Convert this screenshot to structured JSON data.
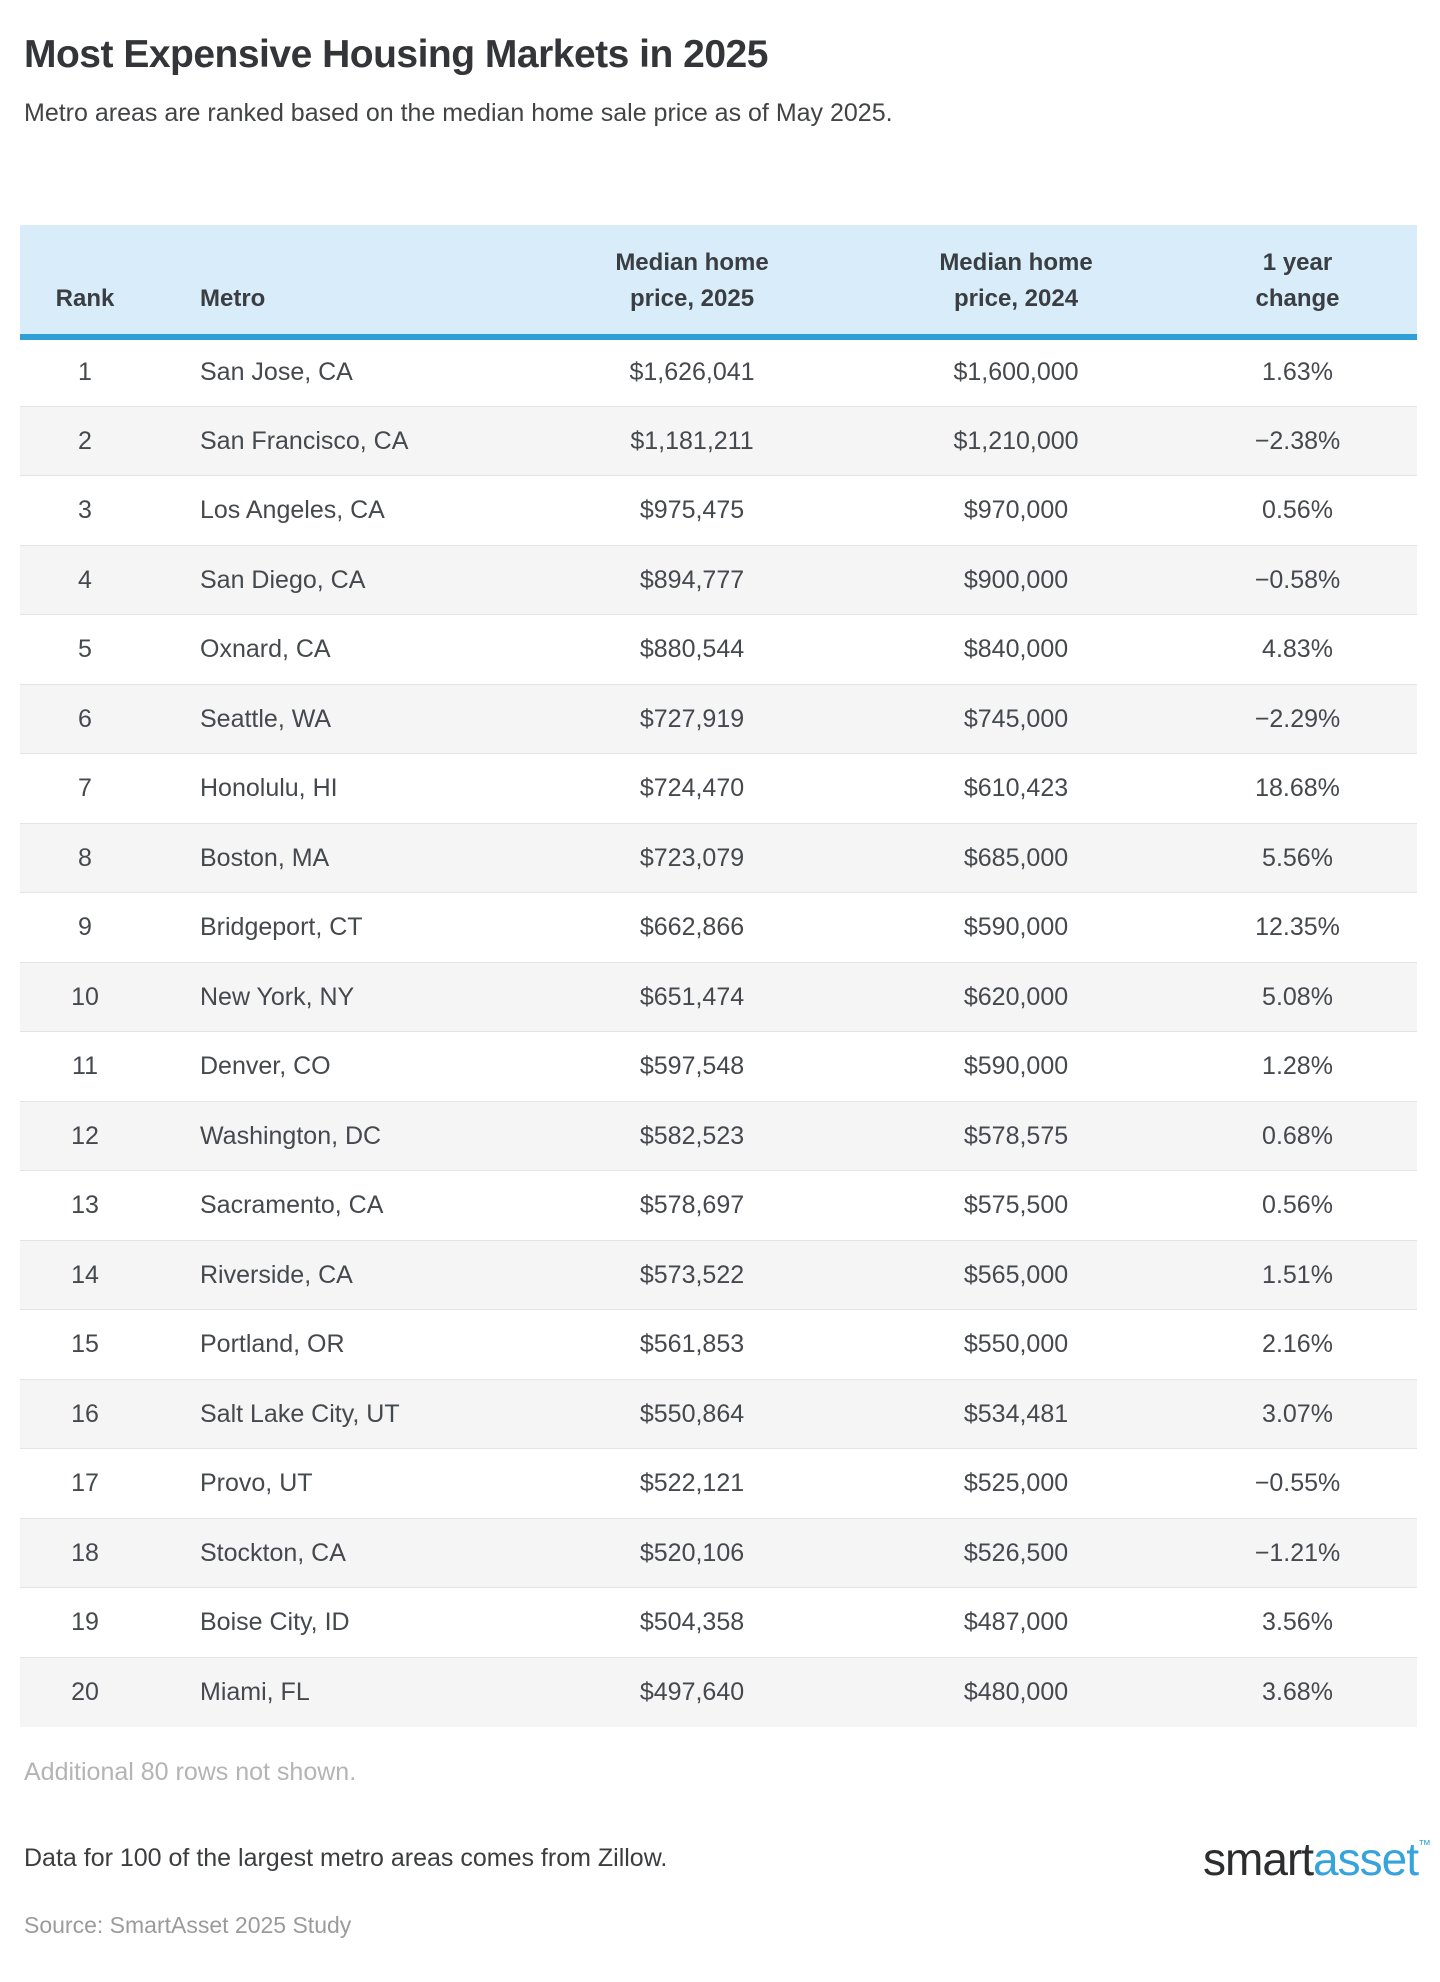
{
  "header": {
    "title": "Most Expensive Housing Markets in 2025",
    "subtitle": "Metro areas are ranked based on the median home sale price as of May 2025."
  },
  "table": {
    "columns": [
      "Rank",
      "Metro",
      "Median home\nprice, 2025",
      "Median home\nprice, 2024",
      "1 year\nchange"
    ]
  },
  "chart_data": {
    "type": "table",
    "title": "Most Expensive Housing Markets in 2025",
    "subtitle": "Metro areas are ranked based on the median home sale price as of May 2025.",
    "columns": [
      "Rank",
      "Metro",
      "Median home price, 2025",
      "Median home price, 2024",
      "1 year change"
    ],
    "rows": [
      [
        "1",
        "San Jose, CA",
        "$1,626,041",
        "$1,600,000",
        "1.63%"
      ],
      [
        "2",
        "San Francisco, CA",
        "$1,181,211",
        "$1,210,000",
        "−2.38%"
      ],
      [
        "3",
        "Los Angeles, CA",
        "$975,475",
        "$970,000",
        "0.56%"
      ],
      [
        "4",
        "San Diego, CA",
        "$894,777",
        "$900,000",
        "−0.58%"
      ],
      [
        "5",
        "Oxnard, CA",
        "$880,544",
        "$840,000",
        "4.83%"
      ],
      [
        "6",
        "Seattle, WA",
        "$727,919",
        "$745,000",
        "−2.29%"
      ],
      [
        "7",
        "Honolulu, HI",
        "$724,470",
        "$610,423",
        "18.68%"
      ],
      [
        "8",
        "Boston, MA",
        "$723,079",
        "$685,000",
        "5.56%"
      ],
      [
        "9",
        "Bridgeport, CT",
        "$662,866",
        "$590,000",
        "12.35%"
      ],
      [
        "10",
        "New York, NY",
        "$651,474",
        "$620,000",
        "5.08%"
      ],
      [
        "11",
        "Denver, CO",
        "$597,548",
        "$590,000",
        "1.28%"
      ],
      [
        "12",
        "Washington, DC",
        "$582,523",
        "$578,575",
        "0.68%"
      ],
      [
        "13",
        "Sacramento, CA",
        "$578,697",
        "$575,500",
        "0.56%"
      ],
      [
        "14",
        "Riverside, CA",
        "$573,522",
        "$565,000",
        "1.51%"
      ],
      [
        "15",
        "Portland, OR",
        "$561,853",
        "$550,000",
        "2.16%"
      ],
      [
        "16",
        "Salt Lake City, UT",
        "$550,864",
        "$534,481",
        "3.07%"
      ],
      [
        "17",
        "Provo, UT",
        "$522,121",
        "$525,000",
        "−0.55%"
      ],
      [
        "18",
        "Stockton, CA",
        "$520,106",
        "$526,500",
        "−1.21%"
      ],
      [
        "19",
        "Boise City, ID",
        "$504,358",
        "$487,000",
        "3.56%"
      ],
      [
        "20",
        "Miami, FL",
        "$497,640",
        "$480,000",
        "3.68%"
      ]
    ],
    "grid": "row-stripes",
    "legend_position": "none"
  },
  "footer": {
    "note": "Additional 80 rows not shown.",
    "data_line": "Data for 100 of the largest metro areas comes from Zillow.",
    "source_line": "Source: SmartAsset 2025 Study",
    "logo": {
      "smart": "smart",
      "asset": "asset",
      "tm": "™"
    }
  },
  "colors": {
    "header_background": "#d8ecf9",
    "header_rule_blue": "#2f9fd8",
    "row_stripe": "#f5f5f5",
    "logo_blue": "#36a3dc"
  }
}
